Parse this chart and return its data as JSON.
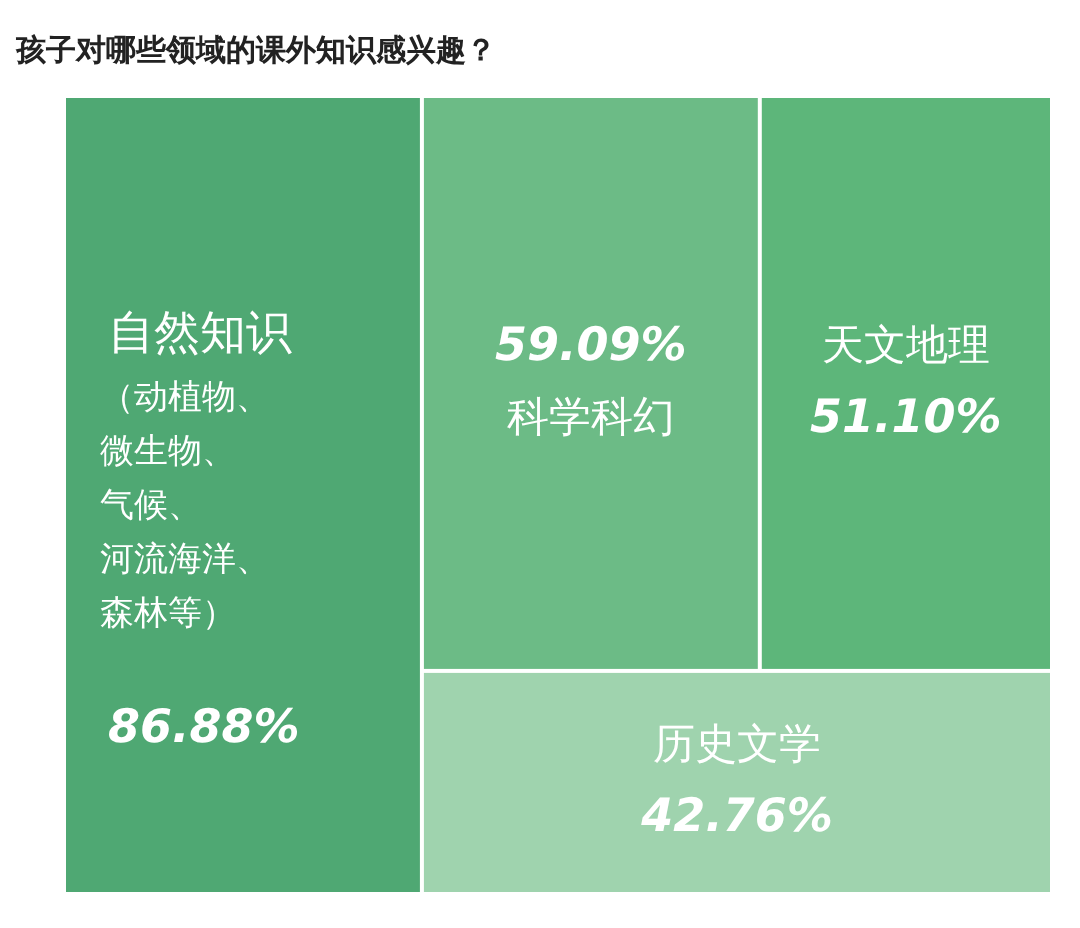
{
  "chart_data": {
    "type": "other",
    "title": "孩子对哪些领域的课外知识感兴趣？",
    "categories": [
      "自然知识",
      "科学科幻",
      "天文地理",
      "历史文学"
    ],
    "values": [
      86.88,
      59.09,
      51.1,
      42.76
    ],
    "value_labels": [
      "86.88%",
      "59.09%",
      "51.10%",
      "42.76%"
    ],
    "colors": [
      "#4fa873",
      "#6cbb86",
      "#5db67a",
      "#9fd3ae"
    ],
    "annotations": [
      "（动植物、微生物、气候、河流海洋、森林等）"
    ]
  }
}
